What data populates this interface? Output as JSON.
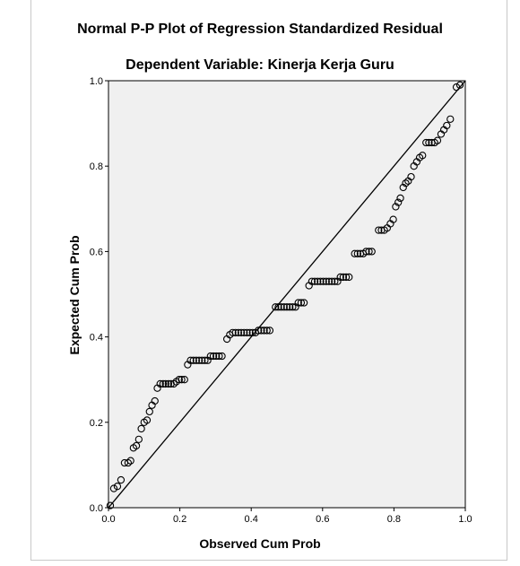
{
  "chart_data": {
    "type": "scatter",
    "title": "Normal P-P Plot of Regression Standardized Residual",
    "subtitle": "Dependent Variable: Kinerja Kerja Guru",
    "xlabel": "Observed Cum Prob",
    "ylabel": "Expected Cum Prob",
    "xlim": [
      0,
      1
    ],
    "ylim": [
      0,
      1
    ],
    "xticks": [
      "0.0",
      "0.2",
      "0.4",
      "0.6",
      "0.8",
      "1.0"
    ],
    "yticks": [
      "0.0",
      "0.2",
      "0.4",
      "0.6",
      "0.8",
      "1.0"
    ],
    "reference_line": [
      [
        0,
        0
      ],
      [
        1,
        1
      ]
    ],
    "grid": false,
    "colors": {
      "plot_background": "#f0f0f0",
      "marker": "#000000",
      "line": "#000000"
    },
    "points": [
      [
        0.005,
        0.005
      ],
      [
        0.015,
        0.045
      ],
      [
        0.025,
        0.05
      ],
      [
        0.035,
        0.065
      ],
      [
        0.045,
        0.105
      ],
      [
        0.055,
        0.105
      ],
      [
        0.062,
        0.11
      ],
      [
        0.07,
        0.14
      ],
      [
        0.078,
        0.145
      ],
      [
        0.085,
        0.16
      ],
      [
        0.092,
        0.185
      ],
      [
        0.1,
        0.2
      ],
      [
        0.108,
        0.205
      ],
      [
        0.115,
        0.225
      ],
      [
        0.122,
        0.24
      ],
      [
        0.13,
        0.25
      ],
      [
        0.137,
        0.28
      ],
      [
        0.145,
        0.29
      ],
      [
        0.153,
        0.29
      ],
      [
        0.16,
        0.29
      ],
      [
        0.168,
        0.29
      ],
      [
        0.175,
        0.29
      ],
      [
        0.183,
        0.29
      ],
      [
        0.19,
        0.295
      ],
      [
        0.198,
        0.3
      ],
      [
        0.205,
        0.3
      ],
      [
        0.213,
        0.3
      ],
      [
        0.222,
        0.335
      ],
      [
        0.23,
        0.345
      ],
      [
        0.238,
        0.345
      ],
      [
        0.246,
        0.345
      ],
      [
        0.254,
        0.345
      ],
      [
        0.262,
        0.345
      ],
      [
        0.27,
        0.345
      ],
      [
        0.278,
        0.345
      ],
      [
        0.286,
        0.355
      ],
      [
        0.294,
        0.355
      ],
      [
        0.302,
        0.355
      ],
      [
        0.31,
        0.355
      ],
      [
        0.318,
        0.355
      ],
      [
        0.332,
        0.395
      ],
      [
        0.34,
        0.405
      ],
      [
        0.348,
        0.41
      ],
      [
        0.356,
        0.41
      ],
      [
        0.364,
        0.41
      ],
      [
        0.372,
        0.41
      ],
      [
        0.38,
        0.41
      ],
      [
        0.388,
        0.41
      ],
      [
        0.396,
        0.41
      ],
      [
        0.404,
        0.41
      ],
      [
        0.412,
        0.41
      ],
      [
        0.42,
        0.415
      ],
      [
        0.428,
        0.415
      ],
      [
        0.436,
        0.415
      ],
      [
        0.444,
        0.415
      ],
      [
        0.452,
        0.415
      ],
      [
        0.468,
        0.47
      ],
      [
        0.476,
        0.47
      ],
      [
        0.484,
        0.47
      ],
      [
        0.492,
        0.47
      ],
      [
        0.5,
        0.47
      ],
      [
        0.508,
        0.47
      ],
      [
        0.516,
        0.47
      ],
      [
        0.524,
        0.47
      ],
      [
        0.532,
        0.48
      ],
      [
        0.54,
        0.48
      ],
      [
        0.548,
        0.48
      ],
      [
        0.562,
        0.52
      ],
      [
        0.57,
        0.53
      ],
      [
        0.578,
        0.53
      ],
      [
        0.586,
        0.53
      ],
      [
        0.594,
        0.53
      ],
      [
        0.602,
        0.53
      ],
      [
        0.61,
        0.53
      ],
      [
        0.618,
        0.53
      ],
      [
        0.626,
        0.53
      ],
      [
        0.634,
        0.53
      ],
      [
        0.642,
        0.53
      ],
      [
        0.65,
        0.54
      ],
      [
        0.658,
        0.54
      ],
      [
        0.666,
        0.54
      ],
      [
        0.674,
        0.54
      ],
      [
        0.69,
        0.595
      ],
      [
        0.698,
        0.595
      ],
      [
        0.706,
        0.595
      ],
      [
        0.714,
        0.595
      ],
      [
        0.722,
        0.6
      ],
      [
        0.73,
        0.6
      ],
      [
        0.738,
        0.6
      ],
      [
        0.757,
        0.65
      ],
      [
        0.765,
        0.65
      ],
      [
        0.773,
        0.65
      ],
      [
        0.781,
        0.655
      ],
      [
        0.79,
        0.665
      ],
      [
        0.798,
        0.675
      ],
      [
        0.805,
        0.705
      ],
      [
        0.812,
        0.715
      ],
      [
        0.818,
        0.725
      ],
      [
        0.826,
        0.75
      ],
      [
        0.833,
        0.76
      ],
      [
        0.84,
        0.765
      ],
      [
        0.848,
        0.775
      ],
      [
        0.856,
        0.8
      ],
      [
        0.864,
        0.81
      ],
      [
        0.872,
        0.82
      ],
      [
        0.88,
        0.825
      ],
      [
        0.89,
        0.855
      ],
      [
        0.898,
        0.855
      ],
      [
        0.906,
        0.855
      ],
      [
        0.914,
        0.855
      ],
      [
        0.922,
        0.86
      ],
      [
        0.932,
        0.875
      ],
      [
        0.94,
        0.885
      ],
      [
        0.948,
        0.895
      ],
      [
        0.958,
        0.91
      ],
      [
        0.975,
        0.985
      ],
      [
        0.985,
        0.99
      ]
    ]
  }
}
